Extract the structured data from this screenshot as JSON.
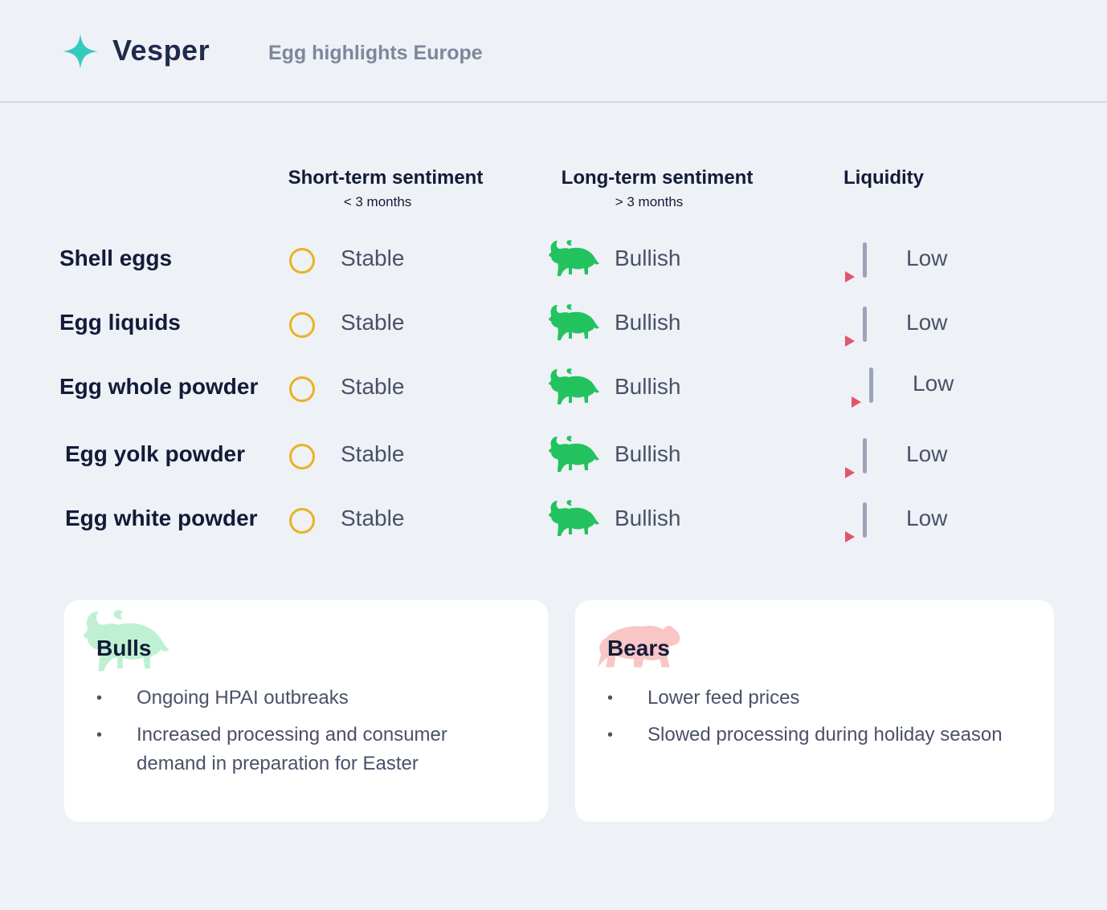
{
  "header": {
    "brand": "Vesper",
    "subtitle": "Egg highlights Europe"
  },
  "columns": {
    "short_term": {
      "title": "Short-term sentiment",
      "sub": "< 3 months"
    },
    "long_term": {
      "title": "Long-term sentiment",
      "sub": "> 3 months"
    },
    "liquidity": {
      "title": "Liquidity"
    }
  },
  "rows": [
    {
      "name": "Shell eggs",
      "short": "Stable",
      "long": "Bullish",
      "liquidity": "Low"
    },
    {
      "name": "Egg liquids",
      "short": "Stable",
      "long": "Bullish",
      "liquidity": "Low"
    },
    {
      "name": "Egg whole powder",
      "short": "Stable",
      "long": "Bullish",
      "liquidity": "Low"
    },
    {
      "name": "Egg yolk powder",
      "short": "Stable",
      "long": "Bullish",
      "liquidity": "Low"
    },
    {
      "name": "Egg white powder",
      "short": "Stable",
      "long": "Bullish",
      "liquidity": "Low"
    }
  ],
  "bulls": {
    "title": "Bulls",
    "items": [
      "Ongoing HPAI outbreaks",
      "Increased processing and consumer demand in preparation for Easter"
    ]
  },
  "bears": {
    "title": "Bears",
    "items": [
      "Lower feed prices",
      "Slowed processing during holiday season"
    ]
  },
  "bullet_glyph": "•",
  "icons": {
    "logo": "sparkle-star-icon",
    "stable": "circle-ring-icon",
    "bullish": "bull-icon",
    "liquidity": "liquidity-bar-icon",
    "bears": "bear-icon"
  },
  "colors": {
    "accent": "#36c9c0",
    "stable": "#e8b322",
    "bullish": "#22c35e",
    "bull_faded": "#bff0d3",
    "bear_faded": "#f9c6c6",
    "liquidity_arrow": "#e0566b",
    "liquidity_bar": "#9aa3b8"
  }
}
